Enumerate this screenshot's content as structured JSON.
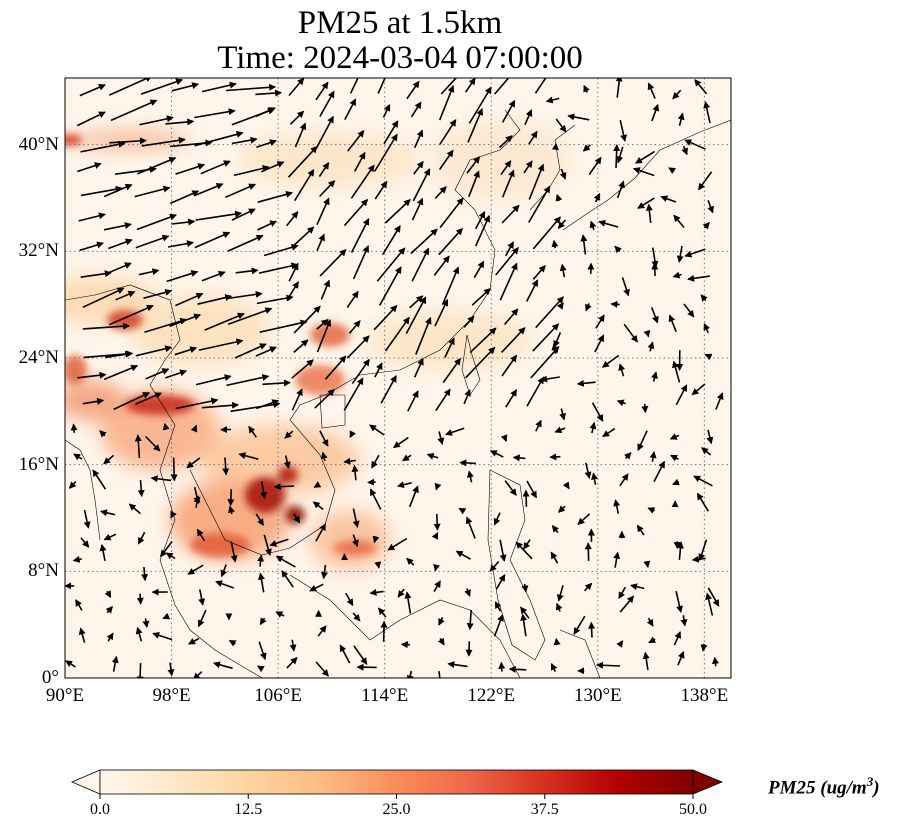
{
  "title": {
    "line1": "PM25 at 1.5km",
    "line2": "Time: 2024-03-04 07:00:00"
  },
  "map": {
    "lon_range": [
      90,
      140
    ],
    "lat_range": [
      0,
      45
    ],
    "lon_ticks": [
      "90°E",
      "98°E",
      "106°E",
      "114°E",
      "122°E",
      "130°E",
      "138°E"
    ],
    "lat_ticks": [
      "0°",
      "8°N",
      "16°N",
      "24°N",
      "32°N",
      "40°N"
    ],
    "gridlines": "dotted",
    "colormap": "OrRd",
    "wind_vectors": true,
    "pm25_hotspots": [
      {
        "region": "northern Myanmar / Thailand border",
        "level": "high"
      },
      {
        "region": "Cambodia",
        "level": "high"
      },
      {
        "region": "southern Vietnam coast",
        "level": "high"
      },
      {
        "region": "Guangxi / northern Vietnam",
        "level": "moderate"
      }
    ]
  },
  "colorbar": {
    "ticks": [
      "0.0",
      "12.5",
      "25.0",
      "37.5",
      "50.0"
    ],
    "range": [
      0,
      50
    ],
    "extend": "both",
    "colors": [
      "#fff7ec",
      "#fee8c8",
      "#fdd49e",
      "#fdbb84",
      "#fc8d59",
      "#ef6548",
      "#d7301f",
      "#b30000",
      "#7f0000"
    ]
  },
  "colorbar_label": {
    "prefix": "PM25 (ug/m",
    "sup": "3",
    "suffix": ")"
  }
}
